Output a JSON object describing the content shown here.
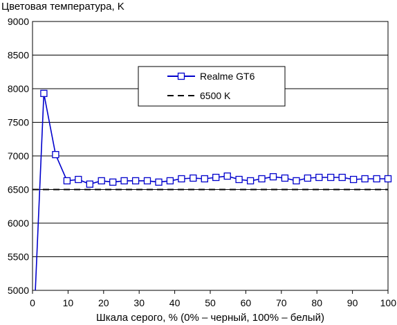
{
  "chart_data": {
    "type": "line",
    "title": "",
    "ylabel": "Цветовая температура, K",
    "xlabel": "Шкала серого, % (0% – черный, 100% – белый)",
    "xlim": [
      0,
      100
    ],
    "ylim": [
      5000,
      9000
    ],
    "x_ticks": [
      "0",
      "10",
      "20",
      "30",
      "40",
      "50",
      "60",
      "70",
      "80",
      "90",
      "100"
    ],
    "y_ticks": [
      "5000",
      "5500",
      "6000",
      "6500",
      "7000",
      "7500",
      "8000",
      "8500",
      "9000"
    ],
    "grid": "horizontal",
    "legend": "top-center",
    "series": [
      {
        "name": "Realme GT6",
        "color": "#0000cc",
        "marker": "open-square",
        "x": [
          0.8,
          3.2,
          6.5,
          9.7,
          12.9,
          16.1,
          19.4,
          22.6,
          25.8,
          29.0,
          32.3,
          35.5,
          38.7,
          41.9,
          45.2,
          48.4,
          51.6,
          54.8,
          58.1,
          61.3,
          64.5,
          67.7,
          71.0,
          74.2,
          77.4,
          80.6,
          83.9,
          87.1,
          90.3,
          93.5,
          96.8,
          100.0
        ],
        "y": [
          5000,
          7930,
          7020,
          6630,
          6650,
          6580,
          6630,
          6610,
          6630,
          6630,
          6630,
          6610,
          6630,
          6660,
          6670,
          6660,
          6680,
          6700,
          6650,
          6630,
          6660,
          6690,
          6670,
          6630,
          6670,
          6680,
          6680,
          6680,
          6650,
          6660,
          6660,
          6660
        ]
      },
      {
        "name": "6500 K",
        "color": "#000000",
        "style": "dashed",
        "x": [
          0,
          100
        ],
        "y": [
          6500,
          6500
        ]
      }
    ]
  }
}
